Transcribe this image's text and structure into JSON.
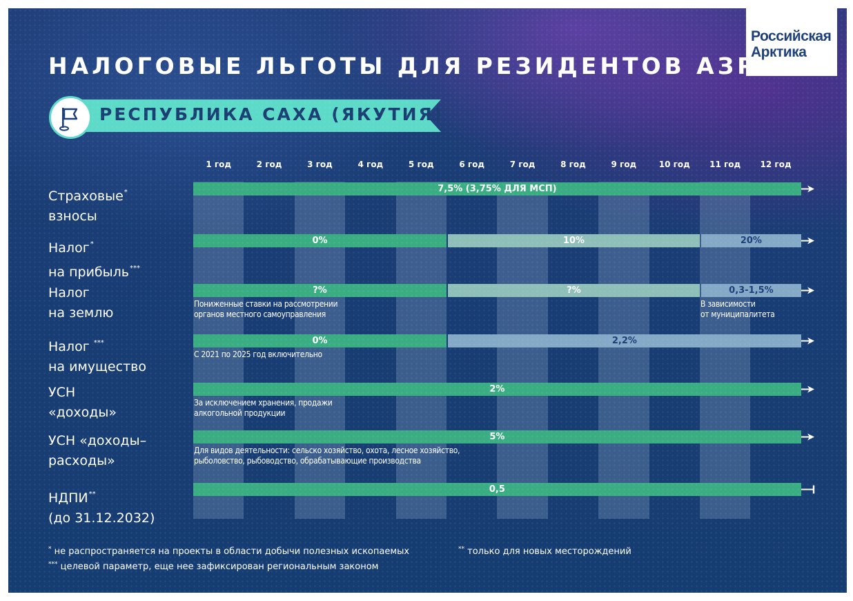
{
  "header": {
    "title": "НАЛОГОВЫЕ ЛЬГОТЫ ДЛЯ РЕЗИДЕНТОВ АЗРФ",
    "region": "РЕСПУБЛИКА САХА (ЯКУТИЯ)",
    "logo_line1": "Российская",
    "logo_line2": "Арктика",
    "region_icon": "flag-icon"
  },
  "chart_data": {
    "type": "table",
    "columns": [
      "1 год",
      "2 год",
      "3 год",
      "4 год",
      "5 год",
      "6 год",
      "7 год",
      "8 год",
      "9 год",
      "10 год",
      "11 год",
      "12 год"
    ],
    "rows": [
      {
        "label_line1": "Страховые",
        "label_line2": "взносы",
        "marks": [
          "*"
        ],
        "end": "arrow",
        "segments": [
          {
            "from_year": 1,
            "to_year": 12,
            "value": "7,5% (3,75% ДЛЯ МСП)",
            "style": "primary"
          }
        ],
        "notes": []
      },
      {
        "label_line1": "Налог",
        "label_line2": "на прибыль",
        "marks": [
          "*",
          "***"
        ],
        "end": "arrow",
        "segments": [
          {
            "from_year": 1,
            "to_year": 5,
            "value": "0%",
            "style": "primary"
          },
          {
            "from_year": 6,
            "to_year": 10,
            "value": "10%",
            "style": "mid"
          },
          {
            "from_year": 11,
            "to_year": 12,
            "value": "20%",
            "style": "light"
          }
        ],
        "notes": []
      },
      {
        "label_line1": "Налог",
        "label_line2": "на землю",
        "marks": [],
        "end": "arrow",
        "segments": [
          {
            "from_year": 1,
            "to_year": 5,
            "value": "?%",
            "style": "primary"
          },
          {
            "from_year": 6,
            "to_year": 10,
            "value": "?%",
            "style": "mid"
          },
          {
            "from_year": 11,
            "to_year": 12,
            "value": "0,3-1,5%",
            "style": "light"
          }
        ],
        "notes": [
          {
            "anchor_year": 1,
            "line1": "Пониженные ставки на рассмотрении",
            "line2": "органов местного самоуправления"
          },
          {
            "anchor_year": 11,
            "line1": "В зависимости",
            "line2": "от муниципалитета"
          }
        ]
      },
      {
        "label_line1": "Налог",
        "label_line2": "на имущество",
        "marks": [
          "***"
        ],
        "end": "arrow",
        "segments": [
          {
            "from_year": 1,
            "to_year": 5,
            "value": "0%",
            "style": "primary"
          },
          {
            "from_year": 6,
            "to_year": 12,
            "value": "2,2%",
            "style": "light"
          }
        ],
        "notes": [
          {
            "anchor_year": 1,
            "line1": "С 2021 по 2025 год включительно",
            "line2": ""
          }
        ]
      },
      {
        "label_line1": "УСН",
        "label_line2": "«доходы»",
        "marks": [],
        "end": "arrow",
        "segments": [
          {
            "from_year": 1,
            "to_year": 12,
            "value": "2%",
            "style": "primary"
          }
        ],
        "notes": [
          {
            "anchor_year": 1,
            "line1": "За исключением хранения, продажи",
            "line2": "алкогольной продукции"
          }
        ]
      },
      {
        "label_line1": "УСН «доходы–",
        "label_line2": "расходы»",
        "marks": [],
        "end": "arrow",
        "segments": [
          {
            "from_year": 1,
            "to_year": 12,
            "value": "5%",
            "style": "primary"
          }
        ],
        "notes": [
          {
            "anchor_year": 1,
            "line1": "Для видов деятельности: сельско хозяйство, охота,  лесное хозяйство,",
            "line2": "рыболовство, рыбоводство, обрабатывающие производства"
          }
        ]
      },
      {
        "label_line1": "НДПИ",
        "label_line2": "(до 31.12.2032)",
        "marks": [
          "**"
        ],
        "end": "bar",
        "segments": [
          {
            "from_year": 1,
            "to_year": 12,
            "value": "0,5",
            "style": "primary"
          }
        ],
        "notes": []
      }
    ],
    "colors": {
      "primary": "#3aad83",
      "mid": "#8ebfb8",
      "light": "#84aac8"
    }
  },
  "footnotes": {
    "f1_mark": "*",
    "f1": "не распространяется на проекты в области добычи полезных ископаемых",
    "f2_mark": "**",
    "f2": "только для новых месторождений",
    "f3_mark": "***",
    "f3": "целевой параметр, еще нее зафиксирован региональным законом"
  }
}
